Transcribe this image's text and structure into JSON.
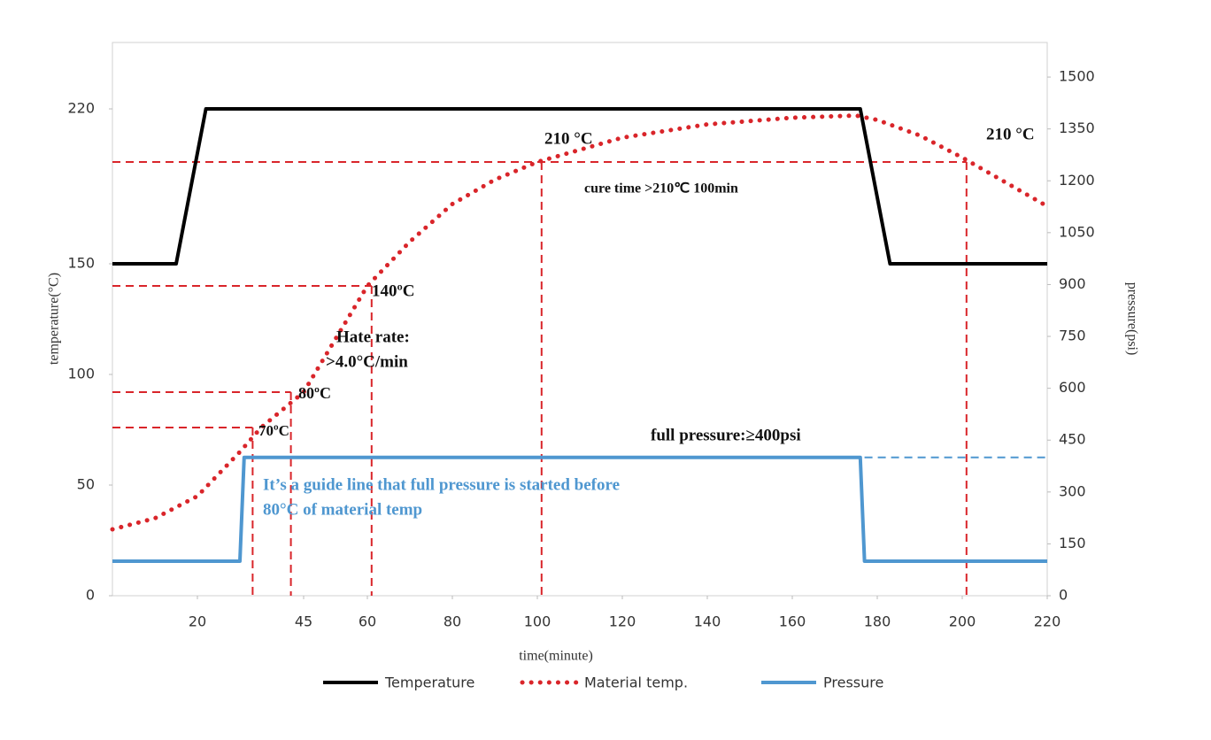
{
  "chart_data": {
    "type": "line",
    "xlabel": "time(minute)",
    "ylabel": "temperature(°C)",
    "y2label": "pressure(psi)",
    "xlim": [
      0,
      220
    ],
    "xticks": [
      20,
      45,
      60,
      80,
      100,
      120,
      140,
      160,
      180,
      200,
      220
    ],
    "ylim": [
      0,
      250
    ],
    "yticks": [
      0,
      50,
      100,
      150,
      220
    ],
    "y2lim": [
      0,
      1600
    ],
    "y2ticks": [
      0,
      150,
      300,
      450,
      600,
      750,
      900,
      1050,
      1200,
      1350,
      1500
    ],
    "series": [
      {
        "name": "Temperature",
        "color": "#000000",
        "style": "solid",
        "x": [
          0,
          15,
          22,
          176,
          183,
          220
        ],
        "values": [
          150,
          150,
          220,
          220,
          150,
          150
        ]
      },
      {
        "name": "Material temp.",
        "color": "#d9252a",
        "style": "dotted",
        "x": [
          0,
          10,
          20,
          30,
          35,
          45,
          50,
          60,
          70,
          80,
          90,
          100,
          120,
          140,
          160,
          175,
          180,
          190,
          200,
          210,
          220
        ],
        "values": [
          30,
          35,
          45,
          65,
          76,
          92,
          108,
          140,
          160,
          177,
          188,
          196,
          207,
          213,
          216,
          217,
          215,
          208,
          198,
          187,
          176
        ]
      },
      {
        "name": "Pressure",
        "color": "#4f97d0",
        "style": "solid",
        "axis": "y2",
        "x": [
          0,
          30,
          31,
          176,
          177,
          220
        ],
        "values": [
          100,
          100,
          400,
          400,
          100,
          100
        ]
      }
    ],
    "guides": [
      {
        "x": 33,
        "y": 76
      },
      {
        "x": 42,
        "y": 92
      },
      {
        "x": 61,
        "y": 140
      },
      {
        "x": 101,
        "y": 196
      },
      {
        "x": 201,
        "y": 196
      }
    ],
    "pressure_guide": {
      "x": [
        177,
        220
      ],
      "value": 400
    },
    "annotations": [
      "210 °C",
      "210 °C",
      "cure time  >210℃  100min",
      "140ºC",
      "Hate rate:",
      ">4.0°C/min",
      "80ºC",
      "70ºC",
      "full pressure:≥400psi",
      "It’s a guide line that full pressure is started before",
      "80°C of material temp"
    ]
  }
}
